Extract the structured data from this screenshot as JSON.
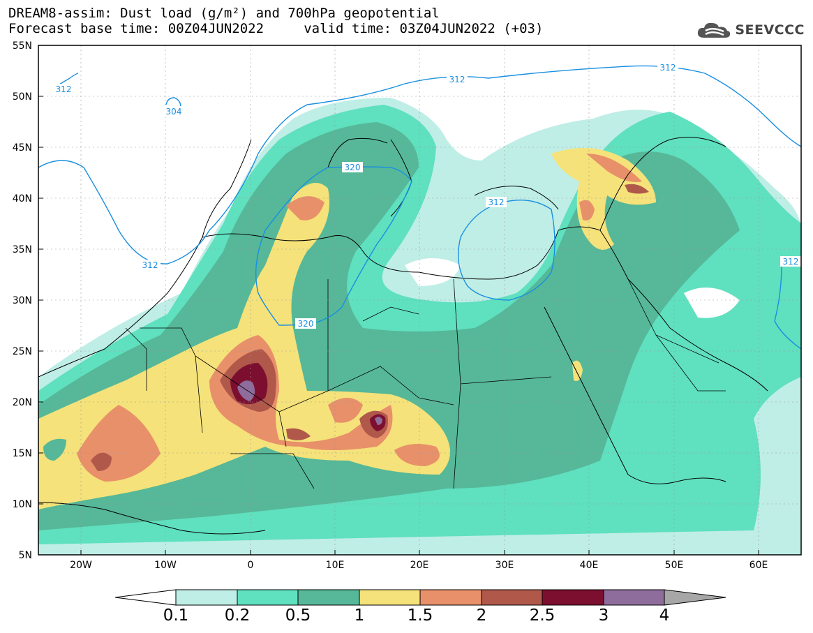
{
  "header": {
    "title_line1": "DREAM8-assim: Dust load (g/m²) and 700hPa geopotential",
    "title_line2": "Forecast base time: 00Z04JUN2022     valid time: 03Z04JUN2022 (+03)",
    "logo_text": "SEEVCCC"
  },
  "map": {
    "lat_labels": [
      "55N",
      "50N",
      "45N",
      "40N",
      "35N",
      "30N",
      "25N",
      "20N",
      "15N",
      "10N",
      "5N"
    ],
    "lon_labels": [
      "20W",
      "10W",
      "0",
      "10E",
      "20E",
      "30E",
      "40E",
      "50E",
      "60E"
    ],
    "contour_labels": [
      {
        "text": "312",
        "key": "c1"
      },
      {
        "text": "304",
        "key": "c2"
      },
      {
        "text": "312",
        "key": "c3"
      },
      {
        "text": "312",
        "key": "c4"
      },
      {
        "text": "320",
        "key": "c5"
      },
      {
        "text": "312",
        "key": "c6"
      },
      {
        "text": "312",
        "key": "c7"
      },
      {
        "text": "320",
        "key": "c8"
      },
      {
        "text": "312",
        "key": "c9"
      }
    ],
    "colors": {
      "0.1": "#bfeee6",
      "0.2": "#5fe0bf",
      "0.5": "#56b898",
      "1": "#f5e27a",
      "1.5": "#e8906a",
      "2": "#b0584a",
      "2.5": "#7c0f30",
      "3": "#8e6c9c",
      "4": "#a7a7a7",
      "contour": "#1a8fe0"
    }
  },
  "colorbar": {
    "labels": [
      "0.1",
      "0.2",
      "0.5",
      "1",
      "1.5",
      "2",
      "2.5",
      "3",
      "4"
    ]
  }
}
